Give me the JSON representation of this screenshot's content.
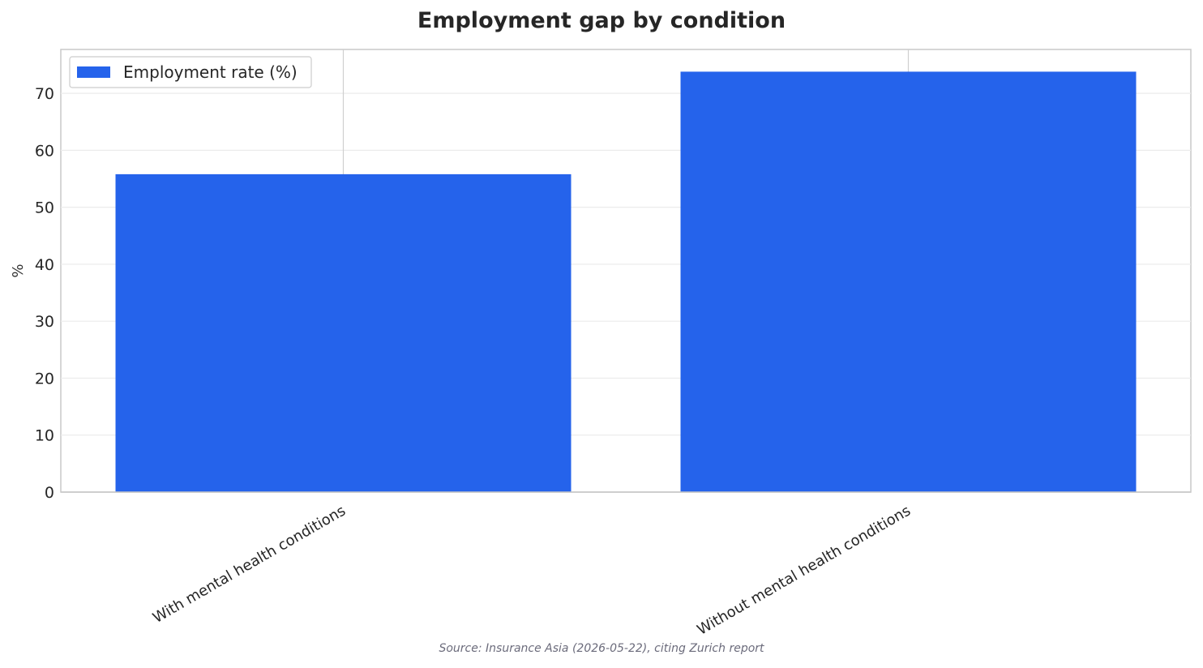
{
  "chart_data": {
    "type": "bar",
    "title": "Employment gap by condition",
    "categories": [
      "With mental health conditions",
      "Without mental health conditions"
    ],
    "series": [
      {
        "name": "Employment rate (%)",
        "values": [
          55.8,
          73.8
        ],
        "color": "#2563eb"
      }
    ],
    "xlabel": "",
    "ylabel": "%",
    "ylim": [
      0,
      77.7
    ],
    "yticks": [
      0,
      10,
      20,
      30,
      40,
      50,
      60,
      70
    ],
    "grid": true,
    "legend_position": "top-left",
    "source": "Source: Insurance Asia (2026-05-22), citing Zurich report"
  }
}
